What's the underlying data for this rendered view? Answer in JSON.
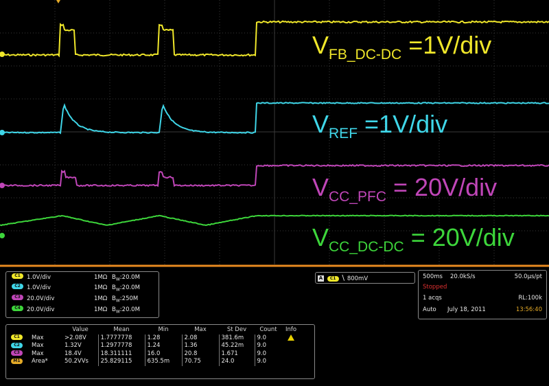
{
  "colors": {
    "ch1": "#f0e72a",
    "ch2": "#3fd6e8",
    "ch3": "#c046b8",
    "ch4": "#3dd63b",
    "math": "#e4aa27",
    "grid": "#3a3a3a",
    "border": "#e88a20"
  },
  "annotations": [
    {
      "base": "V",
      "sub": "FB_DC-DC",
      "rest": " =1V/div",
      "color": "#f0e72a"
    },
    {
      "base": "V",
      "sub": "REF",
      "rest": " =1V/div",
      "color": "#3fd6e8"
    },
    {
      "base": "V",
      "sub": "CC_PFC",
      "rest": " = 20V/div",
      "color": "#c046b8"
    },
    {
      "base": "V",
      "sub": "CC_DC-DC",
      "rest": " = 20V/div",
      "color": "#3dd63b"
    }
  ],
  "channel_settings": [
    {
      "badge": "C1",
      "scale": "1.0V/div",
      "impedance": "1MΩ",
      "bw": "20.0M"
    },
    {
      "badge": "C2",
      "scale": "1.0V/div",
      "impedance": "1MΩ",
      "bw": "20.0M"
    },
    {
      "badge": "C3",
      "scale": "20.0V/div",
      "impedance": "1MΩ",
      "bw": "250M"
    },
    {
      "badge": "C4",
      "scale": "20.0V/div",
      "impedance": "1MΩ",
      "bw": "20.0M"
    }
  ],
  "bw_prefix": "B",
  "bw_sub": "W",
  "trigger": {
    "mode": "A",
    "source": "C1",
    "slope_symbol": "\\",
    "level": "800mV"
  },
  "acquisition": {
    "timebase": "500ms",
    "sample_rate": "20.0kS/s",
    "resolution": "50.0µs/pt",
    "state": "Stopped",
    "acqs": "1 acqs",
    "record_length": "RL:100k",
    "mode": "Auto",
    "date": "July 18, 2011",
    "time": "13:56:40"
  },
  "measurements": {
    "headers": [
      "Value",
      "Mean",
      "Min",
      "Max",
      "St Dev",
      "Count",
      "Info"
    ],
    "rows": [
      {
        "badge": "C1",
        "name": "Max",
        "value": ">2.08V",
        "mean": "1.7777778",
        "min": "1.28",
        "max": "2.08",
        "stdev": "381.6m",
        "count": "9.0",
        "warn": true
      },
      {
        "badge": "C2",
        "name": "Max",
        "value": "1.32V",
        "mean": "1.2977778",
        "min": "1.24",
        "max": "1.36",
        "stdev": "45.22m",
        "count": "9.0",
        "warn": false
      },
      {
        "badge": "C3",
        "name": "Max",
        "value": "18.4V",
        "mean": "18.311111",
        "min": "16.0",
        "max": "20.8",
        "stdev": "1.671",
        "count": "9.0",
        "warn": false
      },
      {
        "badge": "M1",
        "name": "Area*",
        "value": "50.2VVs",
        "mean": "25.829115",
        "min": "635.5m",
        "max": "70.75",
        "stdev": "24.0",
        "count": "9.0",
        "warn": false
      }
    ]
  }
}
